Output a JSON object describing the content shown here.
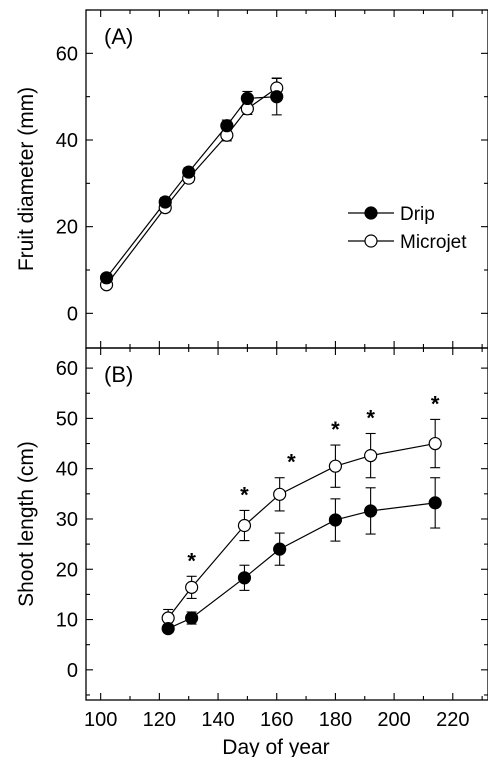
{
  "chart_data": [
    {
      "panel_label": "(A)",
      "type": "line",
      "ylabel": "Fruit diameter (mm)",
      "xlabel": "",
      "xlim": [
        95,
        232
      ],
      "ylim": [
        -8,
        70
      ],
      "y_ticks": [
        0,
        20,
        40,
        60
      ],
      "legend": {
        "position": "middle-right",
        "entries": [
          "Drip",
          "Microjet"
        ]
      },
      "series": [
        {
          "name": "Drip",
          "marker": "filled-circle",
          "x": [
            102,
            122,
            130,
            143,
            150,
            160
          ],
          "y": [
            8.2,
            25.7,
            32.6,
            43.3,
            49.6,
            50
          ],
          "err": [
            0.8,
            1.0,
            1.0,
            1.3,
            1.6,
            4.2
          ]
        },
        {
          "name": "Microjet",
          "marker": "open-circle",
          "x": [
            102,
            122,
            130,
            143,
            150,
            160
          ],
          "y": [
            6.6,
            24.4,
            31.2,
            41.1,
            47.2,
            52.0
          ],
          "err": [
            0.8,
            1.0,
            1.0,
            1.3,
            1.3,
            2.3
          ]
        }
      ]
    },
    {
      "panel_label": "(B)",
      "type": "line",
      "ylabel": "Shoot length (cm)",
      "xlabel": "Day of year",
      "xlim": [
        95,
        232
      ],
      "ylim": [
        -6,
        64
      ],
      "x_ticks": [
        100,
        120,
        140,
        160,
        180,
        200,
        220
      ],
      "y_ticks": [
        0,
        10,
        20,
        30,
        40,
        50,
        60
      ],
      "significance_marker": "*",
      "significance_x": [
        131,
        149,
        165,
        180,
        192,
        214
      ],
      "series": [
        {
          "name": "Drip",
          "marker": "filled-circle",
          "x": [
            123,
            131,
            149,
            161,
            180,
            192,
            214
          ],
          "y": [
            8.2,
            10.3,
            18.3,
            24.0,
            29.8,
            31.6,
            33.2
          ],
          "err": [
            0.8,
            1.2,
            2.5,
            3.2,
            4.2,
            4.6,
            5.0
          ]
        },
        {
          "name": "Microjet",
          "marker": "open-circle",
          "x": [
            123,
            131,
            149,
            161,
            180,
            192,
            214
          ],
          "y": [
            10.3,
            16.4,
            28.7,
            34.9,
            40.5,
            42.6,
            45.0
          ],
          "err": [
            1.7,
            2.2,
            3.0,
            3.3,
            4.2,
            4.4,
            4.8
          ]
        }
      ]
    }
  ]
}
